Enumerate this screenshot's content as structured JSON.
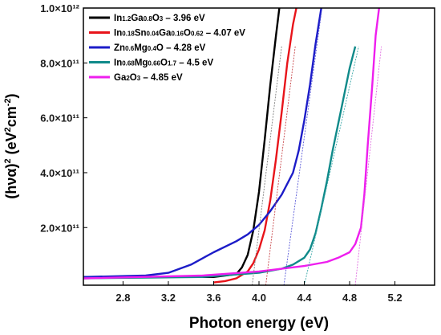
{
  "chart_data": {
    "type": "line",
    "xlabel": "Photon energy (eV)",
    "ylabel": "(hνα)² (eV²cm⁻²)",
    "xlim": [
      2.45,
      5.55
    ],
    "ylim": [
      -0.01,
      1.0
    ],
    "x_ticks": [
      2.8,
      3.2,
      3.6,
      4.0,
      4.4,
      4.8,
      5.2
    ],
    "x_tick_labels": [
      "2.8",
      "3.2",
      "3.6",
      "4.0",
      "4.4",
      "4.8",
      "5.2"
    ],
    "y_ticks": [
      0.2,
      0.4,
      0.6,
      0.8,
      1.0
    ],
    "y_tick_labels": [
      "2.0×10¹¹",
      "4.0×10¹¹",
      "6.0×10¹¹",
      "8.0×10¹¹",
      "1.0×10¹²"
    ],
    "y_scale_note": "values in units of 10^12 eV^2 cm^-2",
    "grid": false,
    "legend_position": "top-left",
    "series": [
      {
        "name": "In1.2Ga0.8O3 – 3.96 eV",
        "color": "#000000",
        "x": [
          2.45,
          3.6,
          3.8,
          3.85,
          3.9,
          3.95,
          4.0,
          4.05,
          4.1,
          4.15,
          4.18
        ],
        "y": [
          0.02,
          0.02,
          0.03,
          0.055,
          0.1,
          0.19,
          0.33,
          0.52,
          0.72,
          0.9,
          1.0
        ],
        "fit_x": [
          3.94,
          4.2
        ],
        "fit_y": [
          -0.01,
          0.86
        ],
        "fit_color": "#808080"
      },
      {
        "name": "In0.18Sn0.04Ga0.16O0.62 – 4.07 eV",
        "color": "#e8141a",
        "x": [
          3.6,
          3.7,
          3.8,
          3.9,
          3.95,
          4.0,
          4.05,
          4.1,
          4.15,
          4.2,
          4.25,
          4.3,
          4.33
        ],
        "y": [
          0.0,
          0.005,
          0.015,
          0.04,
          0.07,
          0.12,
          0.19,
          0.3,
          0.45,
          0.62,
          0.8,
          0.94,
          1.0
        ],
        "fit_x": [
          4.06,
          4.32
        ],
        "fit_y": [
          -0.01,
          0.86
        ],
        "fit_color": "#c8464a"
      },
      {
        "name": "Zn0.6Mg0.4O – 4.28 eV",
        "color": "#1c1cc8",
        "x": [
          2.45,
          3.0,
          3.2,
          3.4,
          3.6,
          3.8,
          3.9,
          4.0,
          4.1,
          4.2,
          4.3,
          4.35,
          4.4,
          4.45,
          4.5,
          4.55
        ],
        "y": [
          0.02,
          0.025,
          0.035,
          0.065,
          0.11,
          0.15,
          0.175,
          0.21,
          0.26,
          0.32,
          0.4,
          0.48,
          0.59,
          0.72,
          0.87,
          1.0
        ],
        "fit_x": [
          4.22,
          4.55
        ],
        "fit_y": [
          -0.01,
          0.98
        ],
        "fit_color": "#5a5ad8"
      },
      {
        "name": "In0.68Mg0.66O1.7 – 4.5 eV",
        "color": "#0f8a8a",
        "x": [
          2.45,
          3.5,
          4.0,
          4.2,
          4.3,
          4.4,
          4.45,
          4.5,
          4.55,
          4.6,
          4.65,
          4.7,
          4.75,
          4.8,
          4.85
        ],
        "y": [
          0.015,
          0.02,
          0.035,
          0.05,
          0.065,
          0.09,
          0.12,
          0.18,
          0.27,
          0.37,
          0.48,
          0.58,
          0.68,
          0.78,
          0.86
        ],
        "fit_x": [
          4.4,
          4.88
        ],
        "fit_y": [
          -0.01,
          0.86
        ],
        "fit_color": "#3aa8a8"
      },
      {
        "name": "Ga2O3 – 4.85 eV",
        "color": "#ee1eee",
        "x": [
          2.45,
          3.5,
          4.0,
          4.4,
          4.6,
          4.7,
          4.8,
          4.85,
          4.9,
          4.93,
          4.96,
          5.0,
          5.03,
          5.06
        ],
        "y": [
          0.015,
          0.025,
          0.04,
          0.06,
          0.075,
          0.09,
          0.11,
          0.14,
          0.2,
          0.32,
          0.5,
          0.72,
          0.9,
          1.0
        ],
        "fit_x": [
          4.85,
          5.08
        ],
        "fit_y": [
          -0.01,
          0.86
        ],
        "fit_color": "#e070e0"
      }
    ]
  },
  "legend": [
    {
      "parts": [
        [
          "In",
          ""
        ],
        [
          "1.2",
          "sub"
        ],
        [
          "Ga",
          ""
        ],
        [
          "0.8",
          "sub"
        ],
        [
          "O",
          ""
        ],
        [
          "3",
          "sub"
        ],
        [
          " – 3.96 eV",
          ""
        ]
      ],
      "color": "#000000"
    },
    {
      "parts": [
        [
          "In",
          ""
        ],
        [
          "0.18",
          "sub"
        ],
        [
          "Sn",
          ""
        ],
        [
          "0.04",
          "sub"
        ],
        [
          "Ga",
          ""
        ],
        [
          "0.16",
          "sub"
        ],
        [
          "O",
          ""
        ],
        [
          "0.62",
          "sub"
        ],
        [
          " – 4.07 eV",
          ""
        ]
      ],
      "color": "#e8141a"
    },
    {
      "parts": [
        [
          "Zn",
          ""
        ],
        [
          "0.6",
          "sub"
        ],
        [
          "Mg",
          ""
        ],
        [
          "0.4",
          "sub"
        ],
        [
          "O",
          ""
        ],
        [
          " – 4.28 eV",
          ""
        ]
      ],
      "color": "#1c1cc8"
    },
    {
      "parts": [
        [
          "In",
          ""
        ],
        [
          "0.68",
          "sub"
        ],
        [
          "Mg",
          ""
        ],
        [
          "0.66",
          "sub"
        ],
        [
          "O",
          ""
        ],
        [
          "1.7",
          "sub"
        ],
        [
          " – 4.5 eV",
          ""
        ]
      ],
      "color": "#0f8a8a"
    },
    {
      "parts": [
        [
          "Ga",
          ""
        ],
        [
          "2",
          "sub"
        ],
        [
          "O",
          ""
        ],
        [
          "3",
          "sub"
        ],
        [
          " – 4.85 eV",
          ""
        ]
      ],
      "color": "#ee1eee"
    }
  ]
}
